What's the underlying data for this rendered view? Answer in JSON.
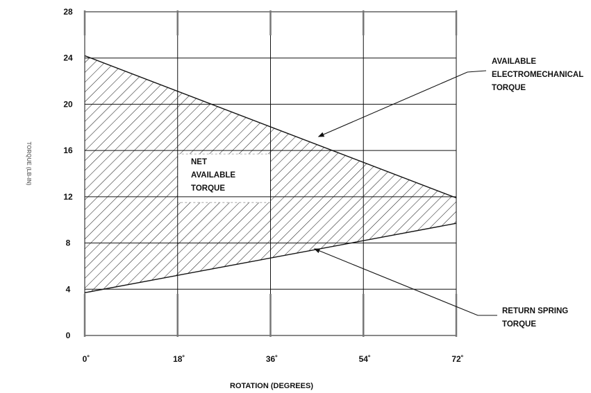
{
  "chart_data": {
    "type": "line",
    "title": "",
    "xlabel": "ROTATION (DEGREES)",
    "ylabel": "TORQUE (LB-IN)",
    "xlim": [
      0,
      72
    ],
    "ylim": [
      0,
      28
    ],
    "x_ticks": [
      0,
      18,
      36,
      54,
      72
    ],
    "x_tick_labels": [
      "0˚",
      "18˚",
      "36˚",
      "54˚",
      "72˚"
    ],
    "y_ticks": [
      0,
      4,
      8,
      12,
      16,
      20,
      24,
      28
    ],
    "y_tick_labels": [
      "0",
      "4",
      "8",
      "12",
      "16",
      "20",
      "24",
      "28"
    ],
    "grid": true,
    "series": [
      {
        "name": "AVAILABLE ELECTROMECHANICAL TORQUE",
        "x": [
          0,
          72
        ],
        "y": [
          24.2,
          11.9
        ]
      },
      {
        "name": "RETURN SPRING TORQUE",
        "x": [
          0,
          72
        ],
        "y": [
          3.7,
          9.7
        ]
      }
    ],
    "shaded_region": {
      "label": [
        "NET",
        "AVAILABLE",
        "TORQUE"
      ],
      "between": [
        "AVAILABLE ELECTROMECHANICAL TORQUE",
        "RETURN SPRING TORQUE"
      ],
      "fill": "hatched"
    },
    "annotations": [
      {
        "lines": [
          "AVAILABLE",
          "ELECTROMECHANICAL",
          "TORQUE"
        ],
        "points_to": "AVAILABLE ELECTROMECHANICAL TORQUE"
      },
      {
        "lines": [
          "RETURN SPRING",
          "TORQUE"
        ],
        "points_to": "RETURN SPRING TORQUE"
      }
    ],
    "colors": {
      "line": "#111111",
      "grid": "#111111",
      "hatch": "#222222"
    }
  }
}
